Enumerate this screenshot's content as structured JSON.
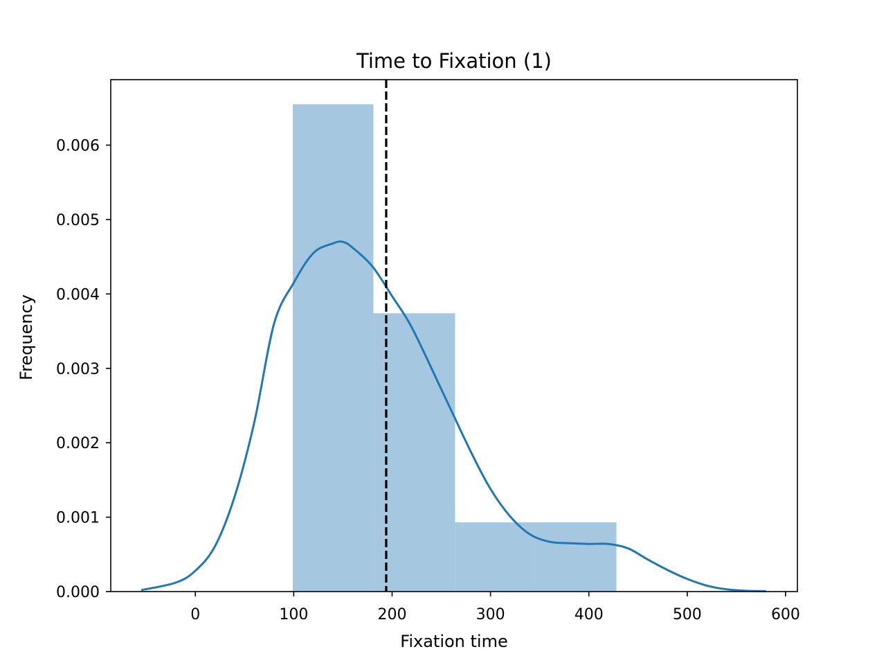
{
  "chart_data": {
    "type": "histogram",
    "title": "Time to Fixation (1)",
    "xlabel": "Fixation time",
    "ylabel": "Frequency",
    "xlim": [
      -86,
      612
    ],
    "ylim": [
      0,
      0.00688
    ],
    "xticks": [
      0,
      100,
      200,
      300,
      400,
      500,
      600
    ],
    "xtick_labels": [
      "0",
      "100",
      "200",
      "300",
      "400",
      "500",
      "600"
    ],
    "yticks": [
      0,
      0.001,
      0.002,
      0.003,
      0.004,
      0.005,
      0.006
    ],
    "ytick_labels": [
      "0.000",
      "0.001",
      "0.002",
      "0.003",
      "0.004",
      "0.005",
      "0.006"
    ],
    "grid": false,
    "legend": "none",
    "bars": [
      {
        "x0": 99,
        "x1": 181,
        "value": 0.00655
      },
      {
        "x0": 181,
        "x1": 264,
        "value": 0.00374
      },
      {
        "x0": 264,
        "x1": 346,
        "value": 0.00093
      },
      {
        "x0": 346,
        "x1": 428,
        "value": 0.00093
      }
    ],
    "bar_color": "#a6c7e0",
    "kde": {
      "color": "#1f77b4",
      "x": [
        -55,
        -20,
        0,
        20,
        40,
        60,
        80,
        100,
        120,
        140,
        150,
        160,
        180,
        200,
        220,
        250,
        280,
        300,
        320,
        340,
        360,
        380,
        400,
        420,
        440,
        460,
        480,
        500,
        520,
        540,
        560,
        580
      ],
      "y": [
        2e-05,
        0.00012,
        0.00028,
        0.00061,
        0.00128,
        0.00228,
        0.0036,
        0.00415,
        0.00455,
        0.00468,
        0.0047,
        0.00462,
        0.00437,
        0.00397,
        0.00355,
        0.00272,
        0.00188,
        0.00138,
        0.00101,
        0.00077,
        0.00067,
        0.00065,
        0.00064,
        0.00064,
        0.00058,
        0.00043,
        0.00029,
        0.00017,
        8e-05,
        3e-05,
        1e-05,
        5e-06
      ]
    },
    "mean_line": {
      "x": 194,
      "color": "#000000",
      "style": "dashed"
    }
  }
}
